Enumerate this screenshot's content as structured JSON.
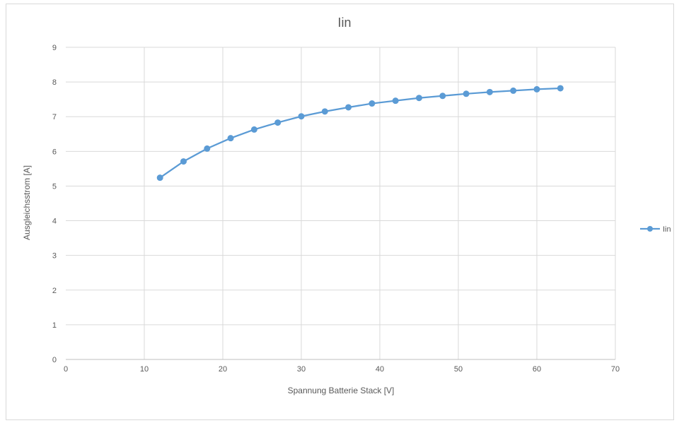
{
  "chart_data": {
    "type": "line",
    "title": "Iin",
    "xlabel": "Spannung Batterie Stack [V]",
    "ylabel": "Ausgleichsstrom [A]",
    "xlim": [
      0,
      70
    ],
    "ylim": [
      0,
      9
    ],
    "xticks": [
      0,
      10,
      20,
      30,
      40,
      50,
      60,
      70
    ],
    "yticks": [
      0,
      1,
      2,
      3,
      4,
      5,
      6,
      7,
      8,
      9
    ],
    "grid": true,
    "legend": "right",
    "series": [
      {
        "name": "Iin",
        "color": "#5b9bd5",
        "x": [
          12,
          15,
          18,
          21,
          24,
          27,
          30,
          33,
          36,
          39,
          42,
          45,
          48,
          51,
          54,
          57,
          60,
          63
        ],
        "y": [
          5.24,
          5.71,
          6.08,
          6.38,
          6.63,
          6.83,
          7.01,
          7.15,
          7.27,
          7.38,
          7.46,
          7.54,
          7.6,
          7.66,
          7.71,
          7.75,
          7.79,
          7.82
        ]
      }
    ]
  }
}
